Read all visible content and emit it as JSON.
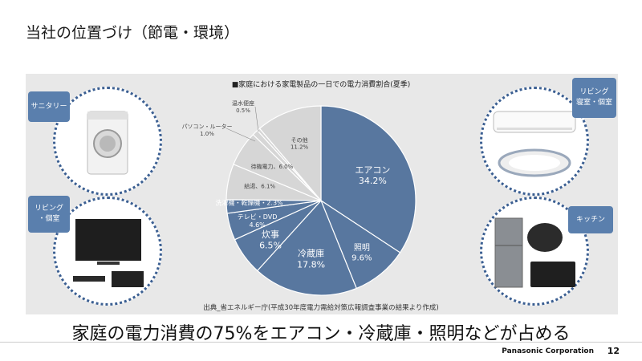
{
  "slide": {
    "title": "当社の位置づけ（節電・環境）",
    "headline": "家庭の電力消費の75%をエアコン・冷蔵庫・照明などが占める",
    "brand": "Panasonic Corporation",
    "page_number": "12"
  },
  "tags": {
    "sanitary": "サニタリー",
    "living_bedroom_top": "リビング\n寝室・個室",
    "living_bedroom_left": "リビング\n・個室",
    "kitchen": "キッチン"
  },
  "colors": {
    "primary": "#58779f",
    "secondary": "#d6d6d6",
    "panel": "#e8e8e8",
    "accent_border": "#3b5f92"
  },
  "chart_data": {
    "type": "pie",
    "title": "■家庭における家電製品の一日での電力消費割合(夏季)",
    "source": "出典_省エネルギー庁(平成30年度電力需給対策広報調査事業の結果より作成)",
    "unit": "%",
    "slices": [
      {
        "label": "エアコン",
        "value_label": "34.2%",
        "value": 34.2,
        "color": "#58779f"
      },
      {
        "label": "照明",
        "value_label": "9.6%",
        "value": 9.6,
        "color": "#58779f"
      },
      {
        "label": "冷蔵庫",
        "value_label": "17.8%",
        "value": 17.8,
        "color": "#58779f"
      },
      {
        "label": "炊事",
        "value_label": "6.5%",
        "value": 6.5,
        "color": "#58779f"
      },
      {
        "label": "テレビ・DVD",
        "value_label": "4.6%",
        "value": 4.6,
        "color": "#58779f"
      },
      {
        "label": "洗濯機・乾燥機",
        "value_label": "2.3%",
        "value": 2.3,
        "color": "#58779f"
      },
      {
        "label": "給湯",
        "value_label": "6.1%",
        "value": 6.1,
        "color": "#d6d6d6"
      },
      {
        "label": "待機電力",
        "value_label": "6.0%",
        "value": 6.0,
        "color": "#d6d6d6"
      },
      {
        "label": "パソコン・ルーター",
        "value_label": "1.0%",
        "value": 1.0,
        "color": "#d6d6d6"
      },
      {
        "label": "温水便座",
        "value_label": "0.5%",
        "value": 0.5,
        "color": "#d6d6d6"
      },
      {
        "label": "その他",
        "value_label": "11.2%",
        "value": 11.2,
        "color": "#d6d6d6"
      }
    ]
  }
}
